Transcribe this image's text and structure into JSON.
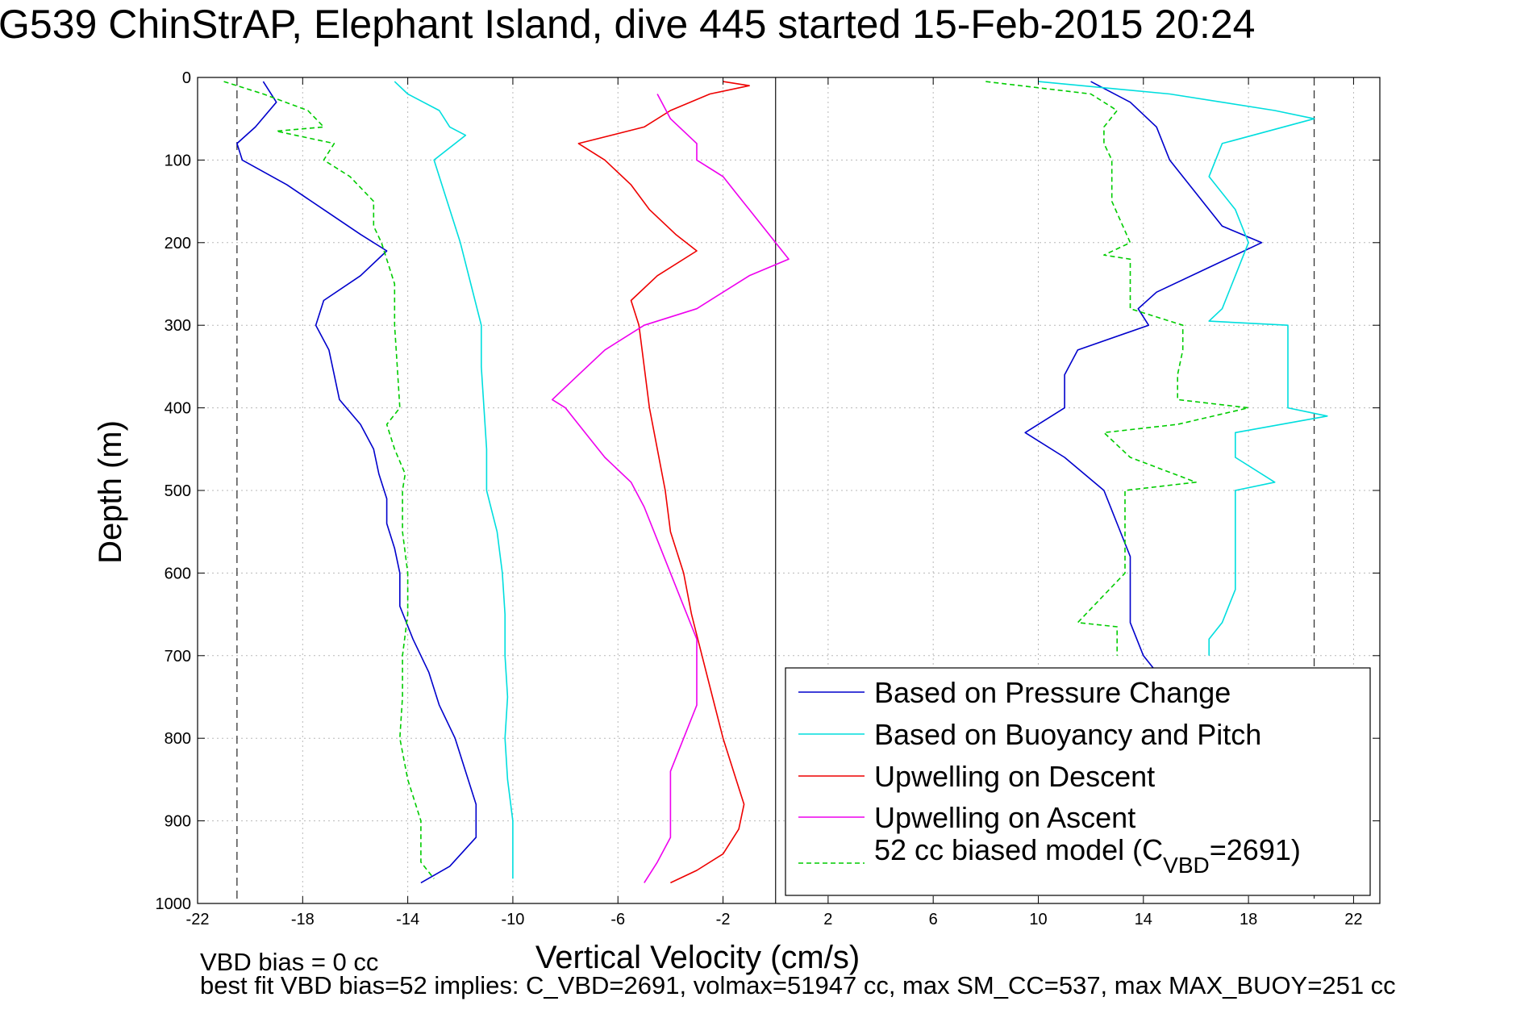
{
  "chart_data": {
    "type": "line",
    "title": "G539 ChinStrAP, Elephant Island, dive 445 started 15-Feb-2015 20:24",
    "xlabel": "Vertical Velocity (cm/s)",
    "ylabel": "Depth (m)",
    "xlim": [
      -22,
      23
    ],
    "ylim": [
      1000,
      0
    ],
    "y_reversed": true,
    "grid": true,
    "legend_position": "bottom-right",
    "x_ticks": [
      "-22",
      "-18",
      "-14",
      "-10",
      "-6",
      "-2",
      "2",
      "6",
      "10",
      "14",
      "18",
      "22"
    ],
    "x_tick_values": [
      -22,
      -18,
      -14,
      -10,
      -6,
      -2,
      2,
      6,
      10,
      14,
      18,
      22
    ],
    "y_ticks": [
      "0",
      "100",
      "200",
      "300",
      "400",
      "500",
      "600",
      "700",
      "800",
      "900",
      "1000"
    ],
    "y_tick_values": [
      0,
      100,
      200,
      300,
      400,
      500,
      600,
      700,
      800,
      900,
      1000
    ],
    "reference_lines": {
      "dashed_x": [
        -20.5,
        20.5
      ],
      "solid_x": [
        0
      ]
    },
    "series": [
      {
        "name": "Based on Pressure Change",
        "color": "#0000cc",
        "segments": [
          {
            "depth": [
              5,
              30,
              60,
              80,
              100,
              130,
              160,
              190,
              210,
              240,
              270,
              300,
              330,
              360,
              390,
              420,
              450,
              480,
              510,
              540,
              570,
              600,
              640,
              680,
              720,
              760,
              800,
              840,
              880,
              920,
              955,
              975
            ],
            "velocity": [
              -19.5,
              -19,
              -19.8,
              -20.5,
              -20.3,
              -18.6,
              -17.2,
              -15.8,
              -14.8,
              -15.8,
              -17.2,
              -17.5,
              -17,
              -16.8,
              -16.6,
              -15.8,
              -15.3,
              -15.1,
              -14.8,
              -14.8,
              -14.5,
              -14.3,
              -14.3,
              -13.8,
              -13.2,
              -12.8,
              -12.2,
              -11.8,
              -11.4,
              -11.4,
              -12.4,
              -13.5
            ]
          },
          {
            "depth": [
              5,
              30,
              60,
              100,
              140,
              180,
              200,
              230,
              260,
              280,
              300,
              330,
              360,
              400,
              430,
              460,
              500,
              540,
              580,
              620,
              660,
              700,
              720
            ],
            "velocity": [
              12,
              13.5,
              14.5,
              15,
              16,
              17,
              18.5,
              16.5,
              14.5,
              13.8,
              14.2,
              11.5,
              11,
              11,
              9.5,
              11,
              12.5,
              13,
              13.5,
              13.5,
              13.5,
              14,
              14.5
            ]
          }
        ]
      },
      {
        "name": "Based on Buoyancy and Pitch",
        "color": "#00dede",
        "segments": [
          {
            "depth": [
              5,
              20,
              40,
              60,
              70,
              100,
              150,
              200,
              250,
              300,
              350,
              400,
              450,
              500,
              550,
              600,
              650,
              700,
              750,
              800,
              850,
              900,
              950,
              970
            ],
            "velocity": [
              -14.5,
              -14,
              -12.8,
              -12.4,
              -11.8,
              -13,
              -12.5,
              -12,
              -11.6,
              -11.2,
              -11.2,
              -11.1,
              -11,
              -11,
              -10.6,
              -10.4,
              -10.3,
              -10.3,
              -10.2,
              -10.3,
              -10.2,
              -10,
              -10,
              -10
            ]
          },
          {
            "depth": [
              5,
              20,
              40,
              50,
              80,
              120,
              160,
              200,
              240,
              280,
              295,
              300,
              320,
              360,
              400,
              410,
              430,
              460,
              490,
              500,
              540,
              580,
              620,
              660,
              680,
              700
            ],
            "velocity": [
              10,
              15,
              19,
              20.5,
              17,
              16.5,
              17.5,
              18,
              17.5,
              17,
              16.5,
              19.5,
              19.5,
              19.5,
              19.5,
              21,
              17.5,
              17.5,
              19,
              17.5,
              17.5,
              17.5,
              17.5,
              17,
              16.5,
              16.5
            ]
          }
        ]
      },
      {
        "name": "Upwelling on Descent",
        "color": "#ee0000",
        "segments": [
          {
            "depth": [
              5,
              10,
              20,
              40,
              60,
              80,
              100,
              130,
              160,
              190,
              210,
              240,
              270,
              300,
              350,
              400,
              450,
              500,
              550,
              600,
              650,
              700,
              750,
              800,
              850,
              880,
              910,
              940,
              960,
              975
            ],
            "velocity": [
              -2,
              -1,
              -2.5,
              -4,
              -5,
              -7.5,
              -6.5,
              -5.5,
              -4.8,
              -3.8,
              -3,
              -4.5,
              -5.5,
              -5.2,
              -5,
              -4.8,
              -4.5,
              -4.2,
              -4,
              -3.5,
              -3.2,
              -2.8,
              -2.4,
              -2,
              -1.5,
              -1.2,
              -1.4,
              -2,
              -3,
              -4
            ]
          }
        ]
      },
      {
        "name": "Upwelling on Ascent",
        "color": "#ee00ee",
        "segments": [
          {
            "depth": [
              20,
              50,
              80,
              100,
              120,
              140,
              160,
              180,
              200,
              220,
              240,
              260,
              280,
              300,
              330,
              360,
              390,
              400,
              420,
              440,
              460,
              490,
              520,
              560,
              600,
              640,
              680,
              720,
              760,
              800,
              840,
              880,
              920,
              950,
              975
            ],
            "velocity": [
              -4.5,
              -4,
              -3,
              -3,
              -2,
              -1.5,
              -1,
              -0.5,
              0,
              0.5,
              -1,
              -2,
              -3,
              -5,
              -6.5,
              -7.5,
              -8.5,
              -8,
              -7.5,
              -7,
              -6.5,
              -5.5,
              -5,
              -4.5,
              -4,
              -3.5,
              -3,
              -3,
              -3,
              -3.5,
              -4,
              -4,
              -4,
              -4.5,
              -5
            ]
          }
        ]
      },
      {
        "name": "52 cc biased model (C_VBD=2691)",
        "legend_main": "52 cc biased model (C",
        "legend_sub": "VBD",
        "legend_end": "=2691)",
        "color": "#00cc00",
        "dashed": true,
        "segments": [
          {
            "depth": [
              5,
              20,
              40,
              60,
              65,
              80,
              100,
              120,
              150,
              180,
              200,
              250,
              300,
              350,
              400,
              420,
              450,
              480,
              500,
              550,
              600,
              650,
              700,
              750,
              800,
              850,
              900,
              950,
              970
            ],
            "velocity": [
              -21,
              -19.5,
              -17.8,
              -17.2,
              -19,
              -16.8,
              -17.2,
              -16.2,
              -15.3,
              -15.3,
              -15,
              -14.5,
              -14.5,
              -14.4,
              -14.3,
              -14.8,
              -14.5,
              -14.1,
              -14.2,
              -14.2,
              -14,
              -14,
              -14.2,
              -14.2,
              -14.3,
              -14,
              -13.5,
              -13.5,
              -13
            ]
          },
          {
            "depth": [
              5,
              20,
              40,
              60,
              80,
              100,
              150,
              200,
              215,
              220,
              250,
              280,
              300,
              330,
              360,
              390,
              400,
              420,
              430,
              460,
              490,
              500,
              550,
              600,
              660,
              665,
              700
            ],
            "velocity": [
              8,
              12,
              13,
              12.5,
              12.5,
              12.8,
              12.8,
              13.5,
              12.5,
              13.5,
              13.5,
              13.5,
              15.5,
              15.5,
              15.3,
              15.3,
              18,
              15.3,
              12.5,
              13.5,
              16,
              13.3,
              13.3,
              13.3,
              11.5,
              13,
              13
            ]
          }
        ]
      }
    ]
  },
  "footer": {
    "line1": "VBD bias = 0 cc",
    "line2": "best fit VBD bias=52 implies: C_VBD=2691, volmax=51947 cc, max SM_CC=537, max MAX_BUOY=251 cc"
  }
}
